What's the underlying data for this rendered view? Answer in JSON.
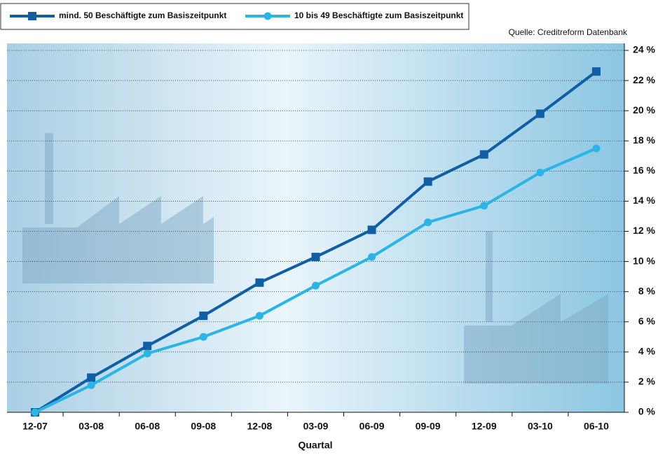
{
  "chart_data": {
    "type": "line",
    "source": "Quelle: Creditreform Datenbank",
    "xlabel": "Quartal",
    "categories": [
      "12-07",
      "03-08",
      "06-08",
      "09-08",
      "12-08",
      "03-09",
      "06-09",
      "09-09",
      "12-09",
      "03-10",
      "06-10"
    ],
    "series": [
      {
        "name": "mind. 50 Beschäftigte zum Basiszeitpunkt",
        "color": "#0f5ea6",
        "marker": "square",
        "values": [
          0,
          2.3,
          4.4,
          6.4,
          8.6,
          10.3,
          12.1,
          15.3,
          17.1,
          19.8,
          22.6
        ]
      },
      {
        "name": "10 bis 49 Beschäftigte zum Basiszeitpunkt",
        "color": "#2bb4e6",
        "marker": "circle",
        "values": [
          0,
          1.8,
          3.9,
          5.0,
          6.4,
          8.4,
          10.3,
          12.6,
          13.7,
          15.9,
          17.5
        ]
      }
    ],
    "ylim": [
      0,
      24
    ],
    "yticks": [
      {
        "value": 0,
        "label": "0 %"
      },
      {
        "value": 2,
        "label": "2 %"
      },
      {
        "value": 4,
        "label": "4 %"
      },
      {
        "value": 6,
        "label": "6 %"
      },
      {
        "value": 8,
        "label": "8 %"
      },
      {
        "value": 10,
        "label": "10 %"
      },
      {
        "value": 12,
        "label": "12 %"
      },
      {
        "value": 14,
        "label": "14 %"
      },
      {
        "value": 16,
        "label": "16 %"
      },
      {
        "value": 18,
        "label": "18 %"
      },
      {
        "value": 20,
        "label": "20 %"
      },
      {
        "value": 22,
        "label": "22 %"
      },
      {
        "value": 24,
        "label": "24 %"
      }
    ],
    "grid": true
  }
}
